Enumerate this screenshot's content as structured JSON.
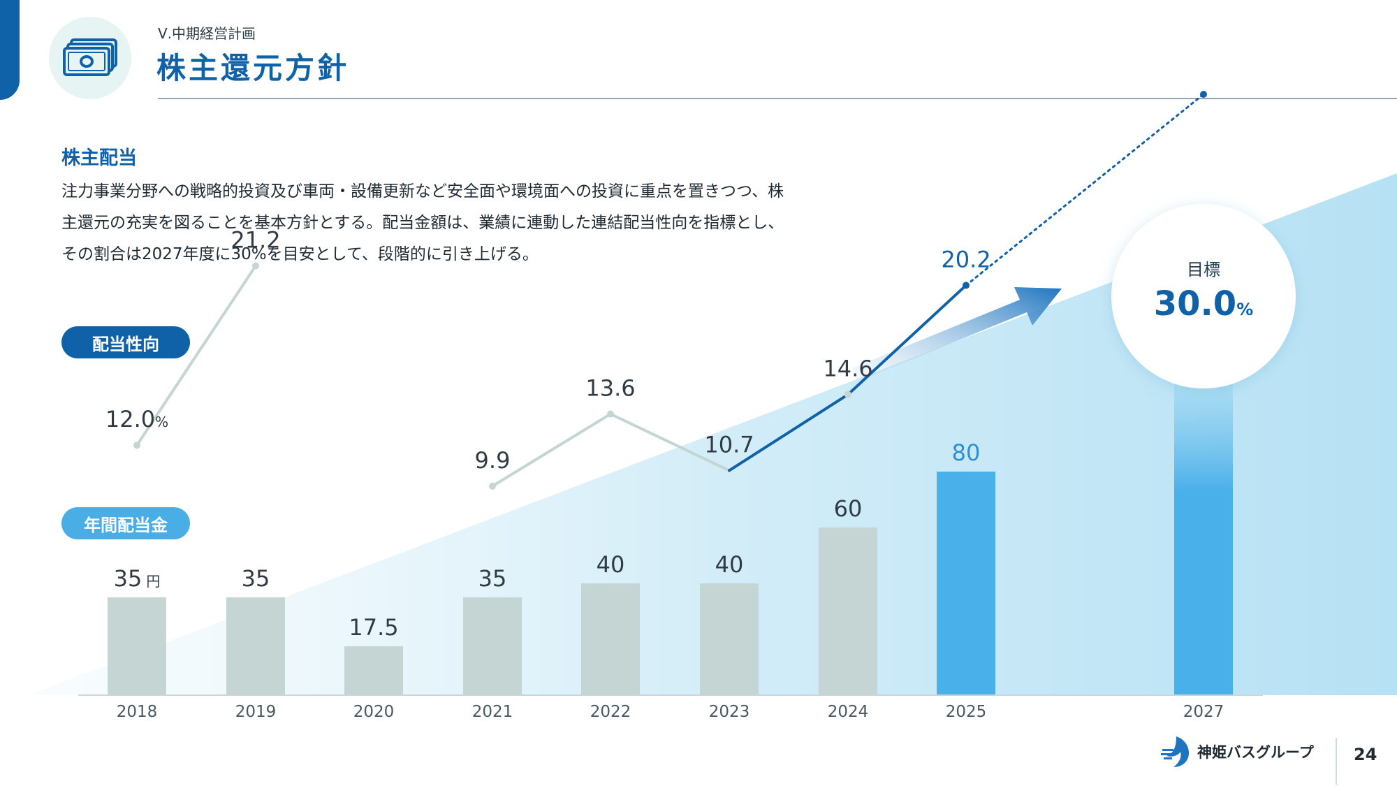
{
  "header": {
    "section_label": "Ⅴ.中期経営計画",
    "title": "株主還元方針"
  },
  "content": {
    "subheading": "株主配当",
    "body_lines": [
      "注力事業分野への戦略的投資及び車両・設備更新など安全面や環境面への投資に重点を置きつつ、株",
      "主還元の充実を図ることを基本方針とする。配当金額は、業績に連動した連結配当性向を指標とし、",
      "その割合は2027年度に30%を目安として、段階的に引き上げる。"
    ]
  },
  "legend": {
    "payout_pill": "配当性向",
    "dividend_pill": "年間配当金"
  },
  "chart_data": {
    "type": "bar",
    "categories": [
      "2018",
      "2019",
      "2020",
      "2021",
      "2022",
      "2023",
      "2024",
      "2025",
      "2027"
    ],
    "series": [
      {
        "values": [
          35,
          35,
          17.5,
          35,
          40,
          40,
          60,
          80,
          null
        ],
        "labels": [
          "35",
          "35",
          "17.5",
          "35",
          "40",
          "40",
          "60",
          "80",
          ""
        ],
        "unit": "円"
      },
      {
        "values": [
          12.0,
          21.2,
          null,
          9.9,
          13.6,
          10.7,
          14.6,
          20.2,
          30.0
        ],
        "labels": [
          "12.0",
          "21.2",
          "",
          "9.9",
          "13.6",
          "10.7",
          "14.6",
          "20.2",
          "30.0"
        ],
        "unit": "%"
      }
    ],
    "target": {
      "label": "目標",
      "value": "30.0",
      "unit": "%"
    },
    "colors": {
      "bar_actual": "#c4d5d4",
      "bar_plan": "#4ab0ea",
      "line_actual": "#c4d5d4",
      "line_plan": "#0f62a8",
      "label_plan": "#2b8fd4"
    }
  },
  "footer": {
    "company": "神姫バスグループ",
    "page": "24"
  }
}
